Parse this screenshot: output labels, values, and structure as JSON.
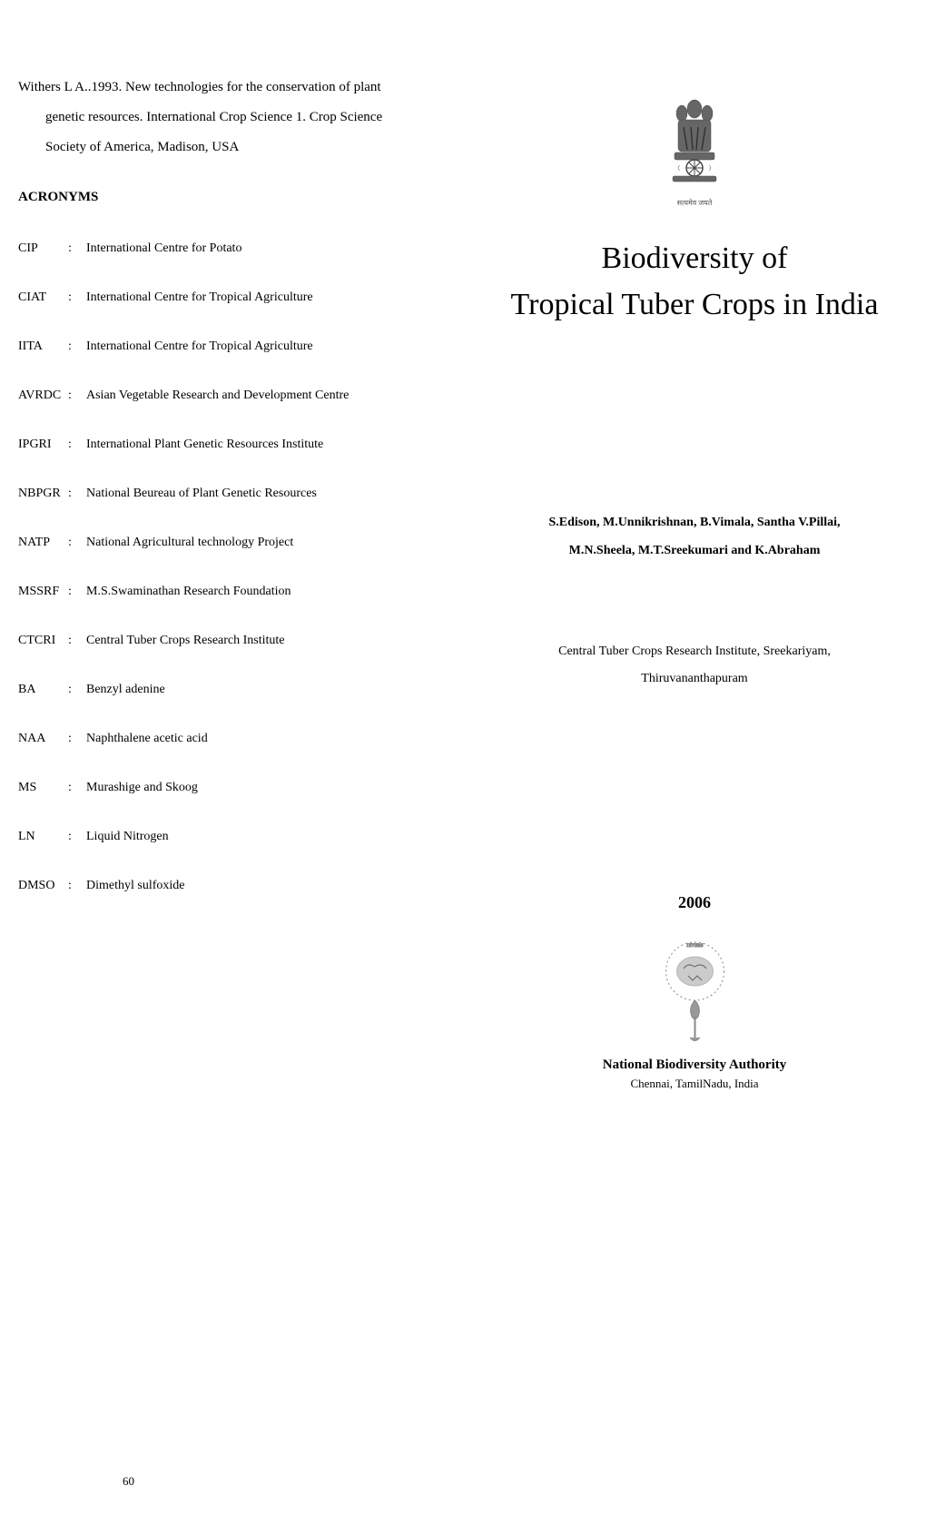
{
  "left": {
    "reference_line1": "Withers L A..1993. New technologies for the conservation of plant",
    "reference_line2": "genetic resources. International Crop Science 1. Crop Science",
    "reference_line3": "Society of America, Madison, USA",
    "acronyms_heading": "ACRONYMS",
    "acronyms": [
      {
        "key": "CIP",
        "val": "International Centre for Potato"
      },
      {
        "key": "CIAT",
        "val": "International Centre for Tropical Agriculture"
      },
      {
        "key": "IITA",
        "val": "International Centre for Tropical Agriculture"
      },
      {
        "key": "AVRDC",
        "val": "Asian Vegetable Research and Development Centre"
      },
      {
        "key": "IPGRI",
        "val": "International Plant Genetic Resources Institute"
      },
      {
        "key": "NBPGR",
        "val": "National Beureau  of Plant Genetic Resources"
      },
      {
        "key": "NATP",
        "val": "National Agricultural technology Project"
      },
      {
        "key": "MSSRF",
        "val": "M.S.Swaminathan Research Foundation"
      },
      {
        "key": "CTCRI",
        "val": "Central Tuber Crops Research Institute"
      },
      {
        "key": "BA",
        "val": "Benzyl adenine"
      },
      {
        "key": "NAA",
        "val": "Naphthalene acetic acid"
      },
      {
        "key": "MS",
        "val": "Murashige and Skoog"
      },
      {
        "key": "LN",
        "val": "Liquid Nitrogen"
      },
      {
        "key": "DMSO",
        "val": "Dimethyl sulfoxide"
      }
    ],
    "page_number": "60"
  },
  "right": {
    "emblem_caption": "सत्यमेव जयते",
    "title_line1": "Biodiversity of",
    "title_line2": "Tropical Tuber Crops in India",
    "authors_line1": "S.Edison, M.Unnikrishnan, B.Vimala, Santha V.Pillai,",
    "authors_line2": "M.N.Sheela, M.T.Sreekumari and K.Abraham",
    "institute_line1": "Central Tuber Crops Research Institute, Sreekariyam,",
    "institute_line2": "Thiruvananthapuram",
    "year": "2006",
    "publisher": "National Biodiversity Authority",
    "publisher_loc": "Chennai, TamilNadu, India"
  },
  "colors": {
    "text": "#000000",
    "background": "#ffffff",
    "emblem_gray": "#888888"
  }
}
